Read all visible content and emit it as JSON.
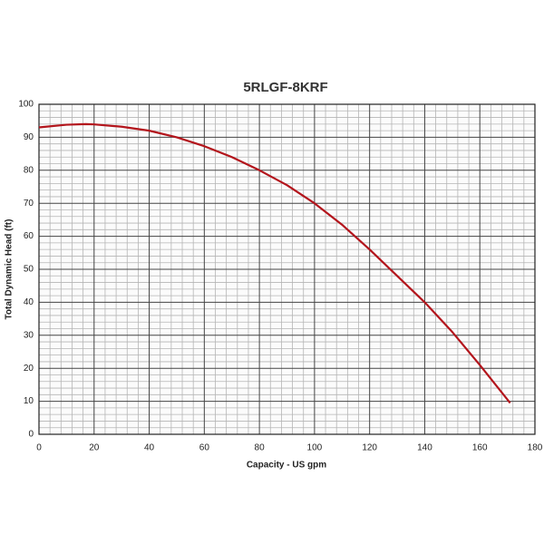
{
  "chart_data": {
    "type": "line",
    "title": "5RLGF-8KRF",
    "x_label": "Capacity - US gpm",
    "y_label": "Total Dynamic Head (ft)",
    "x": [
      0,
      10,
      17,
      20,
      30,
      40,
      50,
      60,
      70,
      80,
      90,
      100,
      110,
      120,
      130,
      140,
      150,
      160,
      171
    ],
    "series": [
      {
        "name": "5RLGF-8KRF",
        "color": "#b3151c",
        "values": [
          93,
          93.8,
          94,
          93.9,
          93.2,
          92,
          90,
          87.3,
          84,
          80,
          75.5,
          70,
          63.5,
          56,
          48,
          40,
          31,
          21,
          9.5
        ]
      }
    ],
    "xlim": [
      0,
      180
    ],
    "xticks": [
      0,
      20,
      40,
      60,
      80,
      100,
      120,
      140,
      160,
      180
    ],
    "ylim": [
      0,
      100
    ],
    "yticks": [
      0,
      10,
      20,
      30,
      40,
      50,
      60,
      70,
      80,
      90,
      100
    ],
    "grid": true
  }
}
